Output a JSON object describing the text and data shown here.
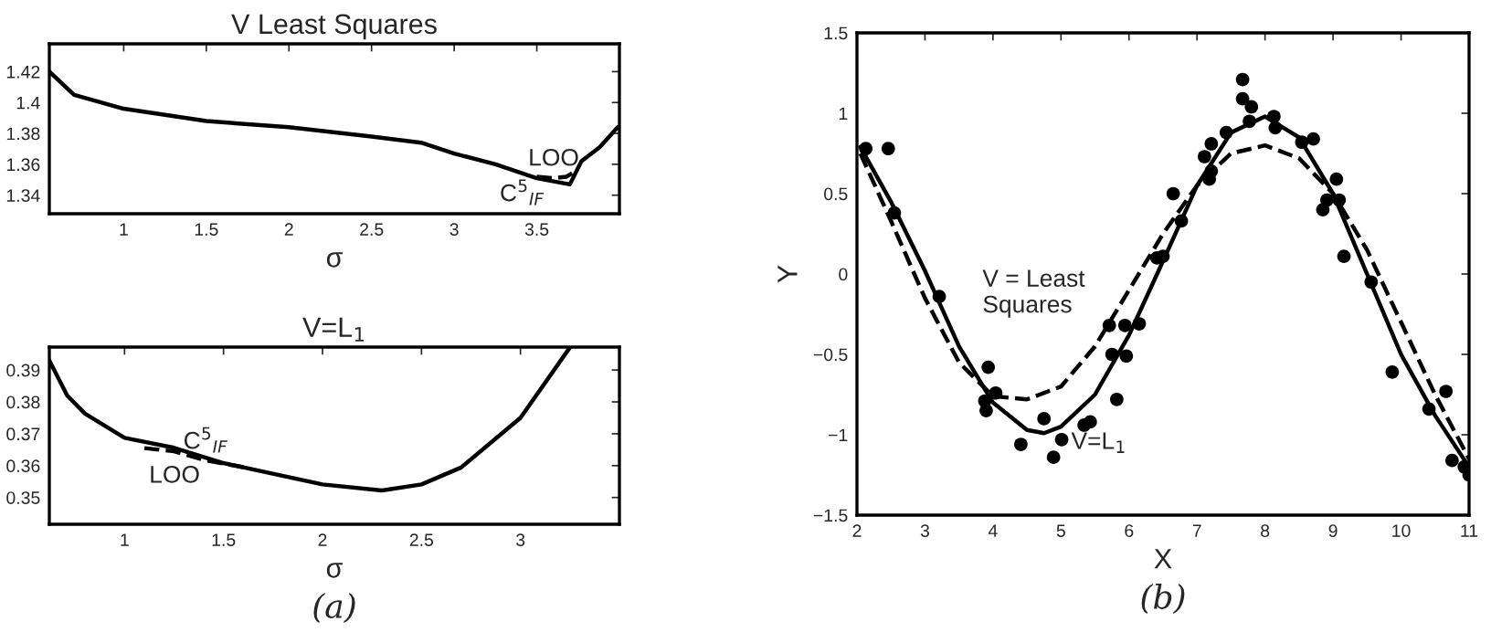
{
  "chart_data": [
    {
      "type": "line",
      "title": "V Least Squares",
      "xlabel": "σ",
      "xlim": [
        0.55,
        4.0
      ],
      "ylim": [
        1.328,
        1.438
      ],
      "xticks": [
        1,
        1.5,
        2,
        2.5,
        3,
        3.5
      ],
      "yticks": [
        1.34,
        1.36,
        1.38,
        1.4,
        1.42
      ],
      "series": [
        {
          "color": "#000000",
          "line_style": "solid",
          "x": [
            0.55,
            0.7,
            1.0,
            1.5,
            2.0,
            2.5,
            2.8,
            3.0,
            3.25,
            3.5,
            3.7,
            3.77,
            3.88,
            3.99
          ],
          "values": [
            1.42,
            1.405,
            1.396,
            1.388,
            1.384,
            1.378,
            1.374,
            1.367,
            1.36,
            1.351,
            1.347,
            1.362,
            1.371,
            1.384
          ]
        },
        {
          "color": "#000000",
          "line_style": "dashed",
          "x": [
            3.5,
            3.6,
            3.68,
            3.74
          ],
          "values": [
            1.352,
            1.351,
            1.352,
            1.356
          ]
        }
      ],
      "annotations": [
        "LOO",
        "C$^{5}$$_{IF}$"
      ]
    },
    {
      "type": "line",
      "title": "V=L$_{1}$",
      "xlabel": "σ",
      "xlim": [
        0.62,
        3.5
      ],
      "ylim": [
        0.3416,
        0.3972
      ],
      "xticks": [
        1,
        1.5,
        2,
        2.5,
        3
      ],
      "yticks": [
        0.35,
        0.36,
        0.37,
        0.38,
        0.39
      ],
      "series": [
        {
          "color": "#000000",
          "line_style": "solid",
          "x": [
            0.62,
            0.71,
            0.8,
            1.0,
            1.25,
            1.5,
            2.0,
            2.3,
            2.5,
            2.7,
            3.0,
            3.25
          ],
          "values": [
            0.393,
            0.382,
            0.3763,
            0.3687,
            0.3656,
            0.3608,
            0.3541,
            0.3522,
            0.3541,
            0.3594,
            0.375,
            0.3971
          ]
        },
        {
          "color": "#000000",
          "line_style": "dashed",
          "x": [
            1.1,
            1.25,
            1.4,
            1.6
          ],
          "values": [
            0.3655,
            0.3645,
            0.3618,
            0.3595
          ]
        }
      ],
      "annotations": [
        "C$^{5}$$_{IF}$",
        "LOO",
        "(a)"
      ]
    },
    {
      "type": "scatter",
      "xlabel": "X",
      "ylabel": "Y",
      "xlim": [
        2,
        11
      ],
      "ylim": [
        -1.5,
        1.5
      ],
      "xticks": [
        2,
        3,
        4,
        5,
        6,
        7,
        8,
        9,
        10,
        11
      ],
      "yticks": [
        {
          "value": -1.5,
          "label": "−1.5"
        },
        {
          "value": -1,
          "label": "−1"
        },
        {
          "value": -0.5,
          "label": "−0.5"
        },
        0,
        0.5,
        1,
        1.5
      ],
      "series": [
        {
          "type": "scatter",
          "marker": "circle",
          "color": "#000000",
          "x": [
            2.13,
            2.46,
            2.55,
            3.21,
            3.88,
            3.9,
            3.93,
            4.04,
            4.41,
            4.75,
            4.89,
            5.01,
            5.34,
            5.43,
            5.71,
            5.75,
            5.82,
            5.94,
            5.96,
            6.15,
            6.41,
            6.5,
            6.65,
            6.77,
            7.11,
            7.18,
            7.21,
            7.21,
            7.43,
            7.67,
            7.67,
            7.77,
            7.8,
            8.13,
            8.15,
            8.54,
            8.71,
            8.85,
            8.91,
            9.05,
            9.09,
            9.16,
            9.56,
            9.87,
            10.41,
            10.66,
            10.75,
            10.93,
            11.0
          ],
          "values": [
            0.78,
            0.78,
            0.38,
            -0.14,
            -0.79,
            -0.85,
            -0.58,
            -0.74,
            -1.06,
            -0.9,
            -1.14,
            -1.03,
            -0.94,
            -0.92,
            -0.32,
            -0.5,
            -0.78,
            -0.32,
            -0.51,
            -0.31,
            0.1,
            0.11,
            0.5,
            0.33,
            0.73,
            0.59,
            0.81,
            0.64,
            0.88,
            1.21,
            1.09,
            0.95,
            1.04,
            0.98,
            0.91,
            0.82,
            0.84,
            0.4,
            0.46,
            0.59,
            0.46,
            0.11,
            -0.05,
            -0.61,
            -0.84,
            -0.73,
            -1.16,
            -1.2,
            -1.25
          ]
        },
        {
          "type": "line",
          "line_style": "solid",
          "color": "#000000",
          "x": [
            2.05,
            2.5,
            3.0,
            3.5,
            4.0,
            4.5,
            4.75,
            5.0,
            5.5,
            6.0,
            6.5,
            7.0,
            7.5,
            8.0,
            8.5,
            9.0,
            9.5,
            10.0,
            10.5,
            11.0
          ],
          "values": [
            0.79,
            0.45,
            0.02,
            -0.45,
            -0.8,
            -0.97,
            -0.99,
            -0.95,
            -0.75,
            -0.38,
            0.08,
            0.55,
            0.88,
            0.98,
            0.85,
            0.5,
            0.0,
            -0.5,
            -0.88,
            -1.2
          ]
        },
        {
          "type": "line",
          "line_style": "dashed",
          "color": "#000000",
          "x": [
            2.05,
            2.5,
            3.0,
            3.5,
            4.0,
            4.5,
            5.0,
            5.5,
            6.0,
            6.5,
            7.0,
            7.5,
            8.0,
            8.5,
            9.0,
            9.5,
            10.0,
            10.5,
            11.0
          ],
          "values": [
            0.75,
            0.33,
            -0.15,
            -0.55,
            -0.76,
            -0.78,
            -0.7,
            -0.45,
            -0.1,
            0.25,
            0.55,
            0.75,
            0.8,
            0.72,
            0.5,
            0.15,
            -0.3,
            -0.75,
            -1.15
          ]
        }
      ],
      "annotations": [
        "V = Least Squares",
        {
          "text": "V=L$_{1}$",
          "x": 5.15,
          "y": -1.05
        },
        "(b)"
      ]
    }
  ]
}
